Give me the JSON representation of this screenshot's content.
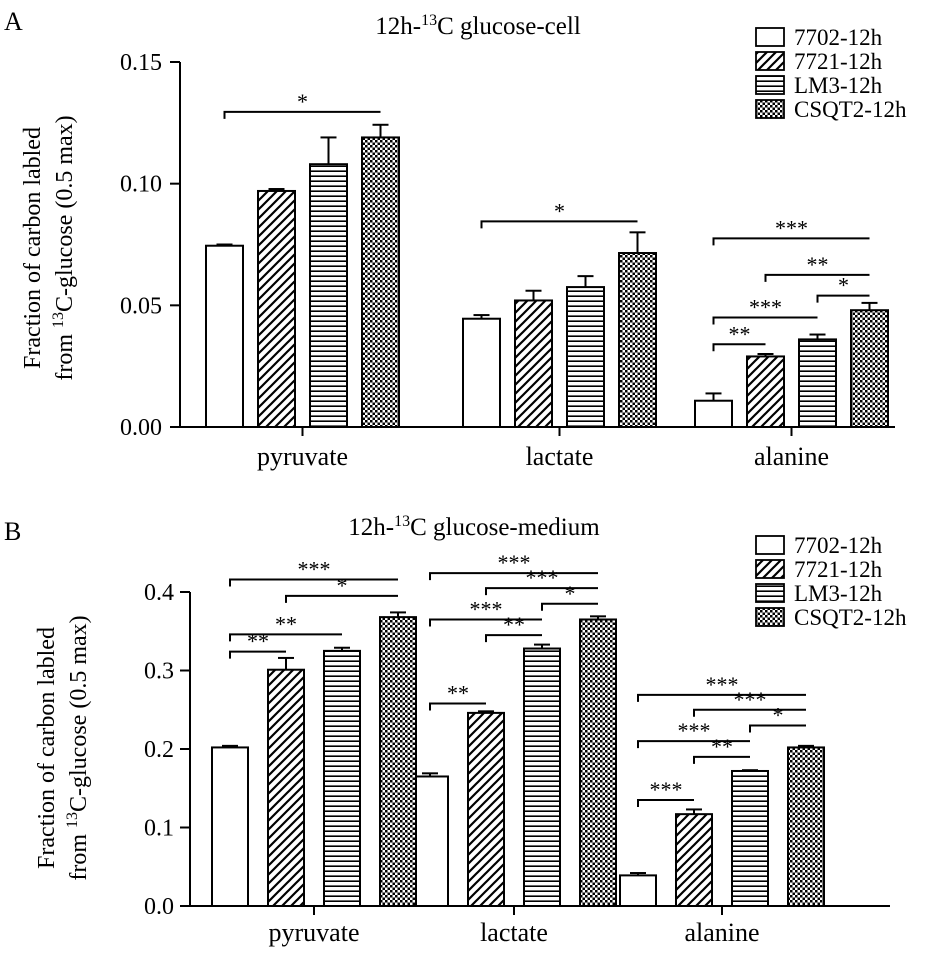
{
  "legend": {
    "items": [
      {
        "label": "7702-12h",
        "pattern": "plain"
      },
      {
        "label": "7721-12h",
        "pattern": "diagonal"
      },
      {
        "label": "LM3-12h",
        "pattern": "horizontal"
      },
      {
        "label": "CSQT2-12h",
        "pattern": "checker"
      }
    ]
  },
  "chart_data": [
    {
      "type": "bar",
      "panel": "A",
      "title_main": "12h-",
      "title_sup": "13",
      "title_rest": "C glucose-cell",
      "ylabel_line1": "Fraction of carbon labled",
      "ylabel_line2_pre": "from ",
      "ylabel_line2_sup": "13",
      "ylabel_line2_post": "C-glucose (0.5 max)",
      "ylim": [
        0,
        0.15
      ],
      "yticks": [
        {
          "value": 0.0,
          "label": "0.00"
        },
        {
          "value": 0.05,
          "label": "0.05"
        },
        {
          "value": 0.1,
          "label": "0.10"
        },
        {
          "value": 0.15,
          "label": "0.15"
        }
      ],
      "categories": [
        "pyruvate",
        "lactate",
        "alanine"
      ],
      "series": [
        {
          "name": "7702-12h",
          "values": [
            0.0745,
            0.0445,
            0.0108
          ],
          "errors": [
            0.0005,
            0.0015,
            0.003
          ]
        },
        {
          "name": "7721-12h",
          "values": [
            0.097,
            0.052,
            0.029
          ],
          "errors": [
            0.0008,
            0.004,
            0.001
          ]
        },
        {
          "name": "LM3-12h",
          "values": [
            0.108,
            0.0575,
            0.036
          ],
          "errors": [
            0.011,
            0.0045,
            0.002
          ]
        },
        {
          "name": "CSQT2-12h",
          "values": [
            0.119,
            0.0715,
            0.048
          ],
          "errors": [
            0.0052,
            0.0085,
            0.003
          ]
        }
      ],
      "significance": [
        {
          "category": 0,
          "from": 0,
          "to": 3,
          "y": 0.1295,
          "label": "*"
        },
        {
          "category": 1,
          "from": 0,
          "to": 3,
          "y": 0.0845,
          "label": "*"
        },
        {
          "category": 2,
          "from": 0,
          "to": 3,
          "y": 0.0775,
          "label": "***"
        },
        {
          "category": 2,
          "from": 1,
          "to": 3,
          "y": 0.0625,
          "label": "**"
        },
        {
          "category": 2,
          "from": 2,
          "to": 3,
          "y": 0.054,
          "label": "*"
        },
        {
          "category": 2,
          "from": 0,
          "to": 2,
          "y": 0.045,
          "label": "***"
        },
        {
          "category": 2,
          "from": 0,
          "to": 1,
          "y": 0.034,
          "label": "**"
        }
      ]
    },
    {
      "type": "bar",
      "panel": "B",
      "title_main": "12h-",
      "title_sup": "13",
      "title_rest": "C glucose-medium",
      "ylabel_line1": "Fraction of carbon labled",
      "ylabel_line2_pre": "from ",
      "ylabel_line2_sup": "13",
      "ylabel_line2_post": "C-glucose (0.5 max)",
      "ylim": [
        0,
        0.4
      ],
      "yticks": [
        {
          "value": 0.0,
          "label": "0.0"
        },
        {
          "value": 0.1,
          "label": "0.1"
        },
        {
          "value": 0.2,
          "label": "0.2"
        },
        {
          "value": 0.3,
          "label": "0.3"
        },
        {
          "value": 0.4,
          "label": "0.4"
        }
      ],
      "categories": [
        "pyruvate",
        "lactate",
        "alanine"
      ],
      "series": [
        {
          "name": "7702-12h",
          "values": [
            0.202,
            0.165,
            0.039
          ],
          "errors": [
            0.002,
            0.004,
            0.003
          ]
        },
        {
          "name": "7721-12h",
          "values": [
            0.301,
            0.246,
            0.117
          ],
          "errors": [
            0.015,
            0.002,
            0.006
          ]
        },
        {
          "name": "LM3-12h",
          "values": [
            0.325,
            0.328,
            0.172
          ],
          "errors": [
            0.004,
            0.005,
            0.001
          ]
        },
        {
          "name": "CSQT2-12h",
          "values": [
            0.368,
            0.365,
            0.202
          ],
          "errors": [
            0.006,
            0.004,
            0.002
          ]
        }
      ],
      "significance": [
        {
          "category": 0,
          "from": 0,
          "to": 3,
          "y": 0.416,
          "label": "***"
        },
        {
          "category": 0,
          "from": 1,
          "to": 3,
          "y": 0.395,
          "label": "*"
        },
        {
          "category": 0,
          "from": 0,
          "to": 2,
          "y": 0.346,
          "label": "**"
        },
        {
          "category": 0,
          "from": 0,
          "to": 1,
          "y": 0.324,
          "label": "**"
        },
        {
          "category": 1,
          "from": 0,
          "to": 3,
          "y": 0.424,
          "label": "***"
        },
        {
          "category": 1,
          "from": 1,
          "to": 3,
          "y": 0.405,
          "label": "***"
        },
        {
          "category": 1,
          "from": 2,
          "to": 3,
          "y": 0.385,
          "label": "*"
        },
        {
          "category": 1,
          "from": 0,
          "to": 2,
          "y": 0.365,
          "label": "***"
        },
        {
          "category": 1,
          "from": 1,
          "to": 2,
          "y": 0.345,
          "label": "**"
        },
        {
          "category": 1,
          "from": 0,
          "to": 1,
          "y": 0.258,
          "label": "**"
        },
        {
          "category": 2,
          "from": 0,
          "to": 3,
          "y": 0.269,
          "label": "***"
        },
        {
          "category": 2,
          "from": 1,
          "to": 3,
          "y": 0.25,
          "label": "***"
        },
        {
          "category": 2,
          "from": 2,
          "to": 3,
          "y": 0.23,
          "label": "*"
        },
        {
          "category": 2,
          "from": 0,
          "to": 2,
          "y": 0.21,
          "label": "***"
        },
        {
          "category": 2,
          "from": 1,
          "to": 2,
          "y": 0.19,
          "label": "**"
        },
        {
          "category": 2,
          "from": 0,
          "to": 1,
          "y": 0.135,
          "label": "***"
        }
      ]
    }
  ]
}
